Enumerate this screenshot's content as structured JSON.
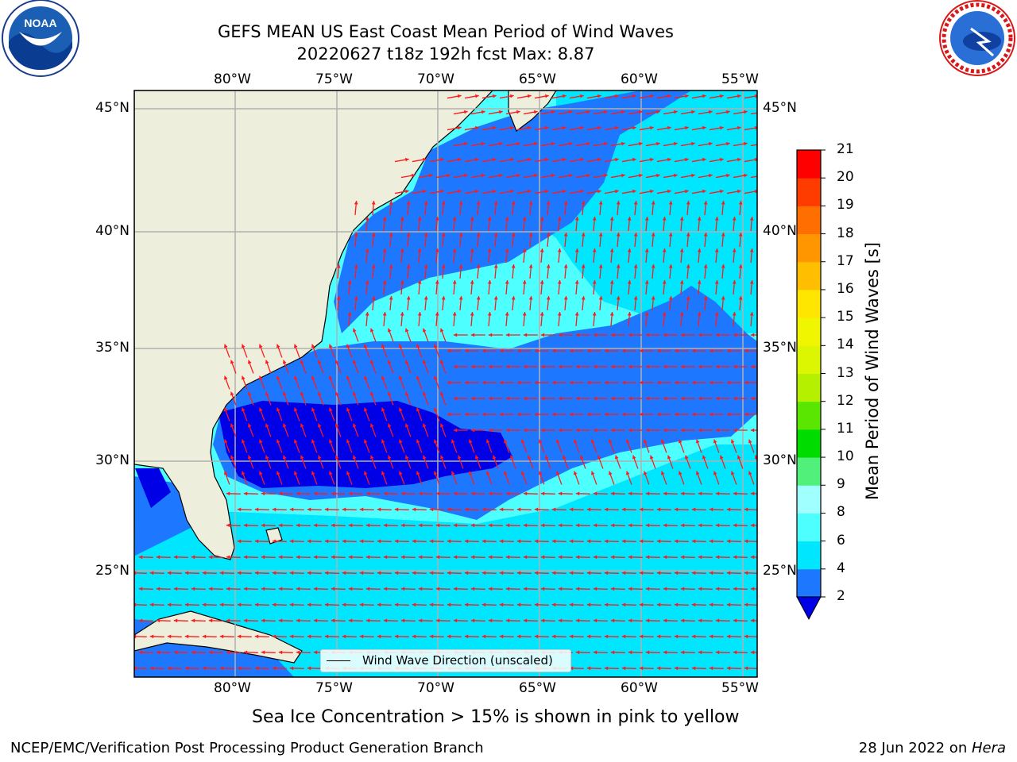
{
  "title_line1": "GEFS MEAN US East Coast Mean Period of Wind Waves",
  "title_line2": "20220627 t18z 192h fcst   Max: 8.87",
  "lon_ticks": [
    "80°W",
    "75°W",
    "70°W",
    "65°W",
    "60°W",
    "55°W"
  ],
  "lat_ticks": [
    "45°N",
    "40°N",
    "35°N",
    "30°N",
    "25°N"
  ],
  "colorbar": {
    "label": "Mean Period of Wind Waves [s]",
    "ticks": [
      "2",
      "4",
      "6",
      "8",
      "9",
      "10",
      "11",
      "12",
      "13",
      "14",
      "15",
      "16",
      "17",
      "18",
      "19",
      "20",
      "21"
    ],
    "colors": [
      "#1e78ff",
      "#00e6ff",
      "#4dffff",
      "#a0ffff",
      "#50f07a",
      "#00dc00",
      "#5ae600",
      "#b4f000",
      "#dcf500",
      "#f0f500",
      "#ffe600",
      "#ffbe00",
      "#ff9600",
      "#ff6e00",
      "#ff3c00",
      "#ff0000"
    ],
    "under_color": "#0000e6"
  },
  "legend_label": "Wind Wave Direction (unscaled)",
  "sea_ice_note": "Sea Ice Concentration > 15% is shown in pink to yellow",
  "footer_left": "NCEP/EMC/Verification Post Processing Product Generation Branch",
  "footer_right_date": "28 Jun 2022 on ",
  "footer_right_machine": "Hera",
  "logo_noaa_text": "NOAA",
  "colors": {
    "land": "#eeeedc",
    "arrow": "#ff1a1a",
    "grid": "#b0b0b0",
    "band_2_4": "#1e78ff",
    "band_4_6": "#00e6ff",
    "band_6_8": "#4dffff",
    "band_under2": "#0000e6"
  },
  "icons": [
    "noaa-logo",
    "nws-logo"
  ]
}
